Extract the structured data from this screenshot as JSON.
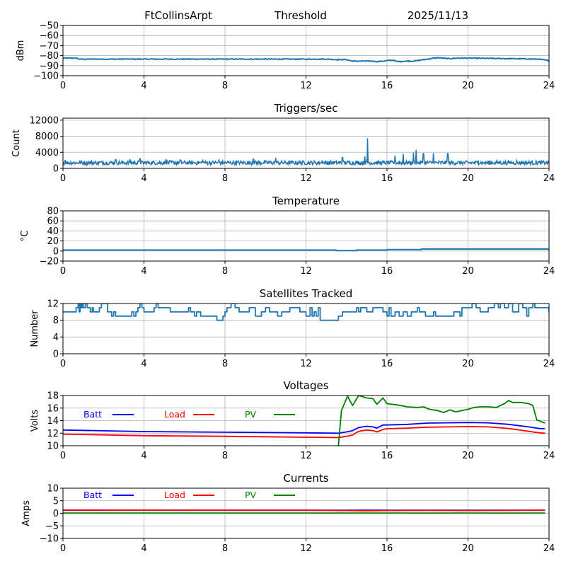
{
  "header": {
    "station": "FtCollinsArpt",
    "mode": "Threshold",
    "date": "2025/11/13"
  },
  "chart_data": [
    {
      "id": "threshold",
      "type": "line",
      "title": "",
      "xlabel": "",
      "ylabel": "dBm",
      "xlim": [
        0,
        24
      ],
      "ylim": [
        -100,
        -50
      ],
      "xticks": [
        "0",
        "4",
        "8",
        "12",
        "16",
        "20",
        "24"
      ],
      "yticks": [
        "−50",
        "−60",
        "−70",
        "−80",
        "−90",
        "−100"
      ],
      "ytick_values": [
        -50,
        -60,
        -70,
        -80,
        -90,
        -100
      ],
      "grid": true,
      "legend": null,
      "series": [
        {
          "name": "dBm",
          "color": "#1f77b4",
          "noise": 0.4,
          "x": [
            0,
            0.7,
            0.8,
            2,
            4,
            6,
            8,
            10,
            12,
            13,
            13.5,
            14,
            14.3,
            15,
            15.3,
            15.5,
            15.8,
            16,
            16.3,
            16.5,
            17,
            17.3,
            18,
            18.5,
            19,
            19.5,
            20,
            22,
            23.5,
            24
          ],
          "y": [
            -82.5,
            -82.5,
            -83.5,
            -83.5,
            -83.5,
            -83.5,
            -83.5,
            -83.5,
            -83.5,
            -83.5,
            -84,
            -84,
            -85.5,
            -85.5,
            -85.5,
            -86,
            -85.5,
            -85,
            -84.5,
            -86,
            -85.5,
            -85.5,
            -83.5,
            -82,
            -83,
            -82.5,
            -82.5,
            -83,
            -83.5,
            -85
          ]
        }
      ]
    },
    {
      "id": "triggers",
      "type": "line",
      "title": "Triggers/sec",
      "xlabel": "",
      "ylabel": "Count",
      "xlim": [
        0,
        24
      ],
      "ylim": [
        0,
        12500
      ],
      "xticks": [
        "0",
        "4",
        "8",
        "12",
        "16",
        "20",
        "24"
      ],
      "yticks": [
        "12000",
        "8000",
        "4000",
        "0"
      ],
      "ytick_values": [
        12000,
        8000,
        4000,
        0
      ],
      "grid": true,
      "legend": null,
      "series": [
        {
          "name": "Count",
          "color": "#1f77b4",
          "baseline": 1400,
          "noise": 500,
          "spikes": [
            {
              "x": 0.1,
              "y": 2100
            },
            {
              "x": 0.9,
              "y": 2000
            },
            {
              "x": 2.6,
              "y": 2200
            },
            {
              "x": 3.3,
              "y": 2300
            },
            {
              "x": 3.8,
              "y": 2400
            },
            {
              "x": 5.1,
              "y": 2300
            },
            {
              "x": 5.8,
              "y": 2100
            },
            {
              "x": 6.9,
              "y": 2000
            },
            {
              "x": 7.7,
              "y": 2100
            },
            {
              "x": 9.4,
              "y": 2300
            },
            {
              "x": 10.5,
              "y": 2600
            },
            {
              "x": 12.8,
              "y": 2000
            },
            {
              "x": 13.8,
              "y": 2700
            },
            {
              "x": 14.9,
              "y": 3000
            },
            {
              "x": 15.05,
              "y": 7500
            },
            {
              "x": 16.4,
              "y": 3200
            },
            {
              "x": 16.8,
              "y": 3600
            },
            {
              "x": 17.3,
              "y": 3900
            },
            {
              "x": 17.45,
              "y": 4600
            },
            {
              "x": 17.8,
              "y": 3700
            },
            {
              "x": 18.3,
              "y": 3800
            },
            {
              "x": 19.0,
              "y": 3700
            },
            {
              "x": 20.5,
              "y": 2000
            },
            {
              "x": 22.4,
              "y": 2000
            }
          ]
        }
      ]
    },
    {
      "id": "temperature",
      "type": "line",
      "title": "Temperature",
      "xlabel": "",
      "ylabel": "°C",
      "xlim": [
        0,
        24
      ],
      "ylim": [
        -20,
        80
      ],
      "xticks": [
        "0",
        "4",
        "8",
        "12",
        "16",
        "20",
        "24"
      ],
      "yticks": [
        "80",
        "60",
        "40",
        "20",
        "0",
        "−20"
      ],
      "ytick_values": [
        80,
        60,
        40,
        20,
        0,
        -20
      ],
      "grid": true,
      "legend": null,
      "series": [
        {
          "name": "Temp",
          "color": "#1f77b4",
          "x": [
            0,
            13.5,
            13.5,
            14.5,
            14.5,
            16,
            16,
            17.7,
            17.7,
            23.9,
            24
          ],
          "y": [
            2,
            2,
            1,
            1,
            2,
            2,
            3,
            3,
            4,
            4,
            3
          ]
        }
      ]
    },
    {
      "id": "satellites",
      "type": "line",
      "title": "Satellites Tracked",
      "xlabel": "",
      "ylabel": "Number",
      "xlim": [
        0,
        24
      ],
      "ylim": [
        0,
        12
      ],
      "xticks": [
        "0",
        "4",
        "8",
        "12",
        "16",
        "20",
        "24"
      ],
      "yticks": [
        "12",
        "8",
        "4",
        "0"
      ],
      "ytick_values": [
        12,
        8,
        4,
        0
      ],
      "grid": true,
      "legend": null,
      "series": [
        {
          "name": "Sats",
          "color": "#1f77b4",
          "step": true,
          "x": [
            0,
            0.65,
            0.75,
            0.8,
            0.85,
            0.9,
            0.95,
            1.0,
            1.1,
            1.2,
            1.35,
            1.45,
            1.5,
            1.8,
            1.9,
            2.2,
            2.4,
            2.5,
            2.6,
            2.7,
            2.8,
            3.4,
            3.5,
            3.6,
            3.7,
            3.8,
            3.9,
            4.0,
            4.3,
            4.5,
            4.6,
            4.7,
            5.1,
            5.3,
            5.8,
            6.2,
            6.3,
            6.5,
            6.6,
            6.8,
            7.1,
            7.4,
            7.6,
            7.8,
            7.9,
            8.0,
            8.1,
            8.3,
            8.5,
            8.7,
            9.2,
            9.5,
            9.8,
            10.0,
            10.2,
            10.6,
            10.8,
            11.2,
            11.7,
            12.0,
            12.2,
            12.3,
            12.4,
            12.5,
            12.6,
            12.7,
            13.3,
            13.4,
            13.6,
            13.8,
            14.2,
            14.5,
            14.6,
            14.7,
            15.0,
            15.3,
            15.8,
            16.0,
            16.1,
            16.2,
            16.4,
            16.6,
            16.8,
            17.0,
            17.2,
            17.5,
            17.6,
            17.9,
            18.3,
            18.4,
            18.8,
            19.3,
            19.6,
            19.7,
            20.2,
            20.4,
            20.6,
            21.0,
            21.3,
            21.5,
            21.6,
            21.8,
            22.0,
            22.2,
            22.5,
            22.7,
            22.9,
            23.0,
            23.2,
            23.3,
            23.5,
            24.0
          ],
          "y": [
            10,
            11,
            12,
            10,
            12,
            11,
            12,
            11,
            12,
            11,
            10,
            11,
            10,
            11,
            12,
            10,
            9,
            10,
            9,
            9,
            9,
            10,
            9,
            10,
            11,
            12,
            11,
            10,
            10,
            11,
            12,
            11,
            11,
            10,
            10,
            11,
            10,
            9,
            10,
            9,
            9,
            9,
            8,
            8,
            9,
            10,
            11,
            12,
            11,
            10,
            11,
            9,
            10,
            11,
            10,
            9,
            10,
            11,
            10,
            9,
            11,
            9,
            10,
            9,
            11,
            8,
            8,
            8,
            9,
            10,
            10,
            11,
            10,
            11,
            10,
            11,
            10,
            9,
            11,
            9,
            10,
            9,
            10,
            9,
            10,
            11,
            10,
            9,
            10,
            9,
            9,
            10,
            9,
            11,
            12,
            11,
            10,
            11,
            12,
            11,
            12,
            11,
            12,
            10,
            12,
            11,
            9,
            11,
            12,
            11,
            11,
            10
          ],
          "comment": "approximate step trace"
        }
      ]
    },
    {
      "id": "voltages",
      "type": "line",
      "title": "Voltages",
      "xlabel": "",
      "ylabel": "Volts",
      "xlim": [
        0,
        24
      ],
      "ylim": [
        10,
        18
      ],
      "xticks": [
        "0",
        "4",
        "8",
        "12",
        "16",
        "20",
        "24"
      ],
      "yticks": [
        "18",
        "16",
        "14",
        "12",
        "10"
      ],
      "ytick_values": [
        18,
        16,
        14,
        12,
        10
      ],
      "grid": true,
      "legend": "top-left, inline row",
      "series": [
        {
          "name": "Batt",
          "color": "#0000ff",
          "x": [
            0,
            4,
            8,
            12,
            13.6,
            14,
            14.3,
            14.6,
            15,
            15.3,
            15.5,
            15.8,
            16,
            17,
            18,
            19,
            20,
            21,
            22,
            23,
            23.5,
            23.8
          ],
          "y": [
            12.5,
            12.25,
            12.15,
            12.05,
            12.0,
            12.2,
            12.4,
            12.9,
            13.1,
            13.0,
            12.8,
            13.3,
            13.3,
            13.4,
            13.6,
            13.65,
            13.7,
            13.65,
            13.4,
            13.0,
            12.75,
            12.7
          ]
        },
        {
          "name": "Load",
          "color": "#ff0000",
          "x": [
            0,
            4,
            8,
            12,
            13.6,
            14,
            14.3,
            14.6,
            15,
            15.3,
            15.5,
            15.8,
            16,
            17,
            18,
            19,
            20,
            21,
            22,
            23,
            23.5,
            23.8
          ],
          "y": [
            11.85,
            11.6,
            11.5,
            11.35,
            11.3,
            11.5,
            11.7,
            12.3,
            12.5,
            12.4,
            12.2,
            12.6,
            12.7,
            12.8,
            12.95,
            13.0,
            13.05,
            13.0,
            12.75,
            12.3,
            12.05,
            12.0
          ]
        },
        {
          "name": "PV",
          "color": "#008000",
          "x": [
            13.6,
            13.75,
            14.05,
            14.3,
            14.6,
            15.0,
            15.3,
            15.5,
            15.8,
            16.0,
            16.5,
            17.0,
            17.5,
            17.8,
            18.1,
            18.5,
            18.8,
            19.1,
            19.4,
            19.7,
            20.0,
            20.3,
            20.6,
            21.0,
            21.4,
            21.8,
            22.0,
            22.2,
            22.6,
            23.0,
            23.2,
            23.4,
            23.8
          ],
          "y": [
            10,
            15.6,
            17.9,
            16.4,
            18.0,
            17.6,
            17.5,
            16.6,
            17.6,
            16.7,
            16.5,
            16.2,
            16.1,
            16.2,
            15.8,
            15.6,
            15.3,
            15.7,
            15.4,
            15.6,
            15.8,
            16.1,
            16.2,
            16.2,
            16.1,
            16.7,
            17.2,
            16.9,
            16.9,
            16.7,
            16.4,
            14.1,
            13.6
          ]
        }
      ]
    },
    {
      "id": "currents",
      "type": "line",
      "title": "Currents",
      "xlabel": "",
      "ylabel": "Amps",
      "xlim": [
        0,
        24
      ],
      "ylim": [
        -10,
        10
      ],
      "xticks": [
        "0",
        "4",
        "8",
        "12",
        "16",
        "20",
        "24"
      ],
      "yticks": [
        "10",
        "5",
        "0",
        "−5",
        "−10"
      ],
      "ytick_values": [
        10,
        5,
        0,
        -5,
        -10
      ],
      "grid": true,
      "legend": "top-left, inline row",
      "series": [
        {
          "name": "Batt",
          "color": "#0000ff",
          "x": [
            0,
            23.8
          ],
          "y": [
            1.2,
            1.2
          ]
        },
        {
          "name": "Load",
          "color": "#ff0000",
          "x": [
            0,
            4,
            8,
            12,
            14,
            15,
            16,
            18,
            20,
            22,
            23.8
          ],
          "y": [
            1.3,
            1.25,
            1.2,
            1.2,
            1.1,
            1.0,
            1.1,
            1.15,
            1.1,
            1.15,
            1.25
          ]
        },
        {
          "name": "PV",
          "color": "#008000",
          "x": [
            0,
            23.8
          ],
          "y": [
            0.1,
            0.1
          ]
        }
      ]
    }
  ]
}
